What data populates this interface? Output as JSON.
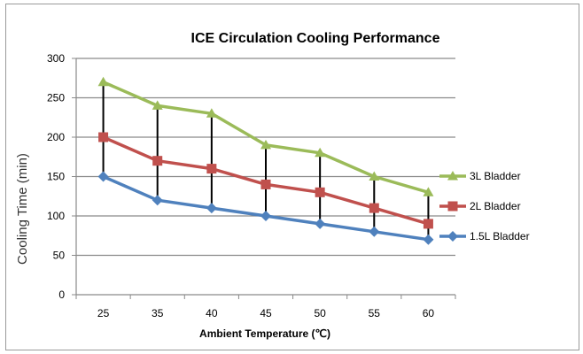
{
  "chart_data": {
    "type": "line",
    "title": "ICE Circulation Cooling Performance",
    "xlabel": "Ambient Temperature (℃)",
    "ylabel": "Cooling Time (min)",
    "categories": [
      "25",
      "35",
      "40",
      "45",
      "50",
      "55",
      "60"
    ],
    "ylim": [
      0,
      300
    ],
    "yticks": [
      0,
      50,
      100,
      150,
      200,
      250,
      300
    ],
    "grid": true,
    "high_low_lines": true,
    "legend_position": "right",
    "series": [
      {
        "name": "3L Bladder",
        "values": [
          270,
          240,
          230,
          190,
          180,
          150,
          130
        ],
        "color": "#9BBB59",
        "marker": "triangle"
      },
      {
        "name": "2L Bladder",
        "values": [
          200,
          170,
          160,
          140,
          130,
          110,
          90
        ],
        "color": "#C0504D",
        "marker": "square"
      },
      {
        "name": "1.5L Bladder",
        "values": [
          150,
          120,
          110,
          100,
          90,
          80,
          70
        ],
        "color": "#4F81BD",
        "marker": "diamond"
      }
    ]
  }
}
